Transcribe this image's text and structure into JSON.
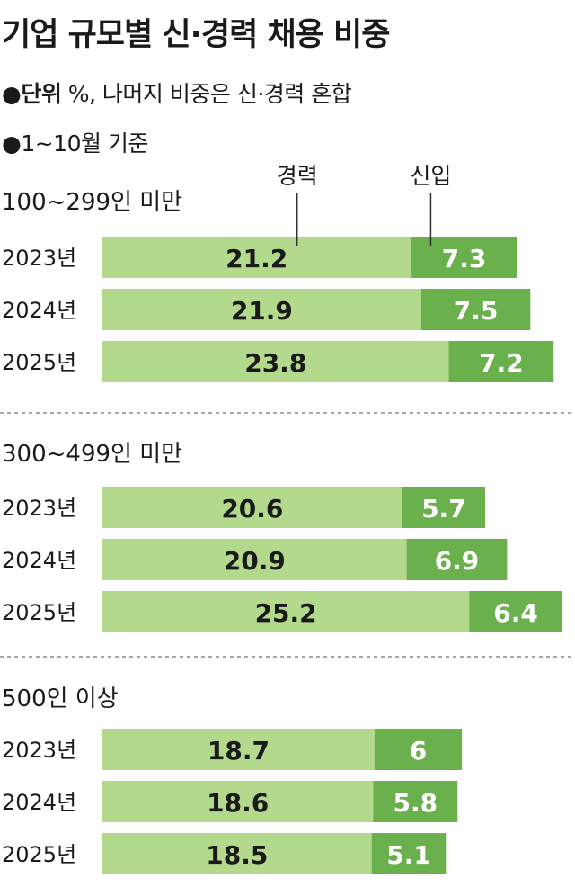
{
  "header": {
    "title": "기업 규모별 신·경력 채용 비중",
    "note_unit_label": "●단위",
    "note_unit_text": " %, 나머지 비중은 신·경력 혼합",
    "note_period": "●1~10월 기준"
  },
  "chart_data": {
    "type": "bar",
    "orientation": "horizontal",
    "stacked": true,
    "unit": "%",
    "legend": [
      "경력",
      "신입"
    ],
    "colors": {
      "경력": "#b3d98c",
      "신입": "#6ab04c"
    },
    "groups": [
      {
        "title": "100~299인 미만",
        "categories": [
          "2023년",
          "2024년",
          "2025년"
        ],
        "series": [
          {
            "name": "경력",
            "values": [
              21.2,
              21.9,
              23.8
            ]
          },
          {
            "name": "신입",
            "values": [
              7.3,
              7.5,
              7.2
            ]
          }
        ]
      },
      {
        "title": "300~499인 미만",
        "categories": [
          "2023년",
          "2024년",
          "2025년"
        ],
        "series": [
          {
            "name": "경력",
            "values": [
              20.6,
              20.9,
              25.2
            ]
          },
          {
            "name": "신입",
            "values": [
              5.7,
              6.9,
              6.4
            ]
          }
        ]
      },
      {
        "title": "500인 이상",
        "categories": [
          "2023년",
          "2024년",
          "2025년"
        ],
        "series": [
          {
            "name": "경력",
            "values": [
              18.7,
              18.6,
              18.5
            ]
          },
          {
            "name": "신입",
            "values": [
              6,
              5.8,
              5.1
            ]
          }
        ]
      }
    ]
  }
}
